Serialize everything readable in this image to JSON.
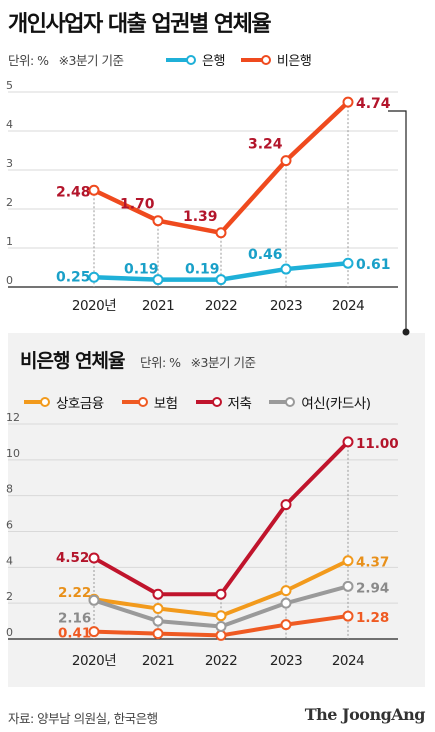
{
  "title": "개인사업자 대출 업권별 연체율",
  "source": "자료: 양부남 의원실, 한국은행",
  "brand": "The JoongAng",
  "chart_data": [
    {
      "type": "line",
      "title": "",
      "unit_label": "단위: %",
      "note": "※3분기 기준",
      "x": [
        "2020년",
        "2021",
        "2022",
        "2023",
        "2024"
      ],
      "ylim": [
        0,
        5
      ],
      "yticks": [
        0,
        1,
        2,
        3,
        4,
        5
      ],
      "series": [
        {
          "name": "은행",
          "color": "#1fb0d8",
          "values": [
            0.25,
            0.19,
            0.19,
            0.46,
            0.61
          ],
          "labels": [
            "0.25",
            "0.19",
            "0.19",
            "0.46",
            "0.61"
          ],
          "label_color": "#1aa0c8"
        },
        {
          "name": "비은행",
          "color": "#ef4a1e",
          "values": [
            2.48,
            1.7,
            1.39,
            3.24,
            4.74
          ],
          "labels": [
            "2.48",
            "1.70",
            "1.39",
            "3.24",
            "4.74"
          ],
          "label_color": "#b3152b"
        }
      ]
    },
    {
      "type": "line",
      "title": "비은행 연체율",
      "unit_label": "단위: %",
      "note": "※3분기 기준",
      "x": [
        "2020년",
        "2021",
        "2022",
        "2023",
        "2024"
      ],
      "ylim": [
        0,
        12
      ],
      "yticks": [
        0,
        2,
        4,
        6,
        8,
        10,
        12
      ],
      "series": [
        {
          "name": "상호금융",
          "color": "#f29a1c",
          "values": [
            2.22,
            1.7,
            1.3,
            2.7,
            4.37
          ],
          "labels": [
            "2.22",
            "",
            "",
            "",
            "4.37"
          ],
          "label_color": "#e8901a"
        },
        {
          "name": "보험",
          "color": "#ef5a22",
          "values": [
            0.41,
            0.3,
            0.2,
            0.8,
            1.28
          ],
          "labels": [
            "0.41",
            "",
            "",
            "",
            "1.28"
          ],
          "label_color": "#ef5a22"
        },
        {
          "name": "저축",
          "color": "#c0142c",
          "values": [
            4.52,
            2.5,
            2.5,
            7.5,
            11.0
          ],
          "labels": [
            "4.52",
            "",
            "",
            "",
            "11.00"
          ],
          "label_color": "#b3152b"
        },
        {
          "name": "여신(카드사)",
          "color": "#9a9a9a",
          "values": [
            2.16,
            1.0,
            0.7,
            2.0,
            2.94
          ],
          "labels": [
            "2.16",
            "",
            "",
            "",
            "2.94"
          ],
          "label_color": "#8a8a8a"
        }
      ]
    }
  ]
}
